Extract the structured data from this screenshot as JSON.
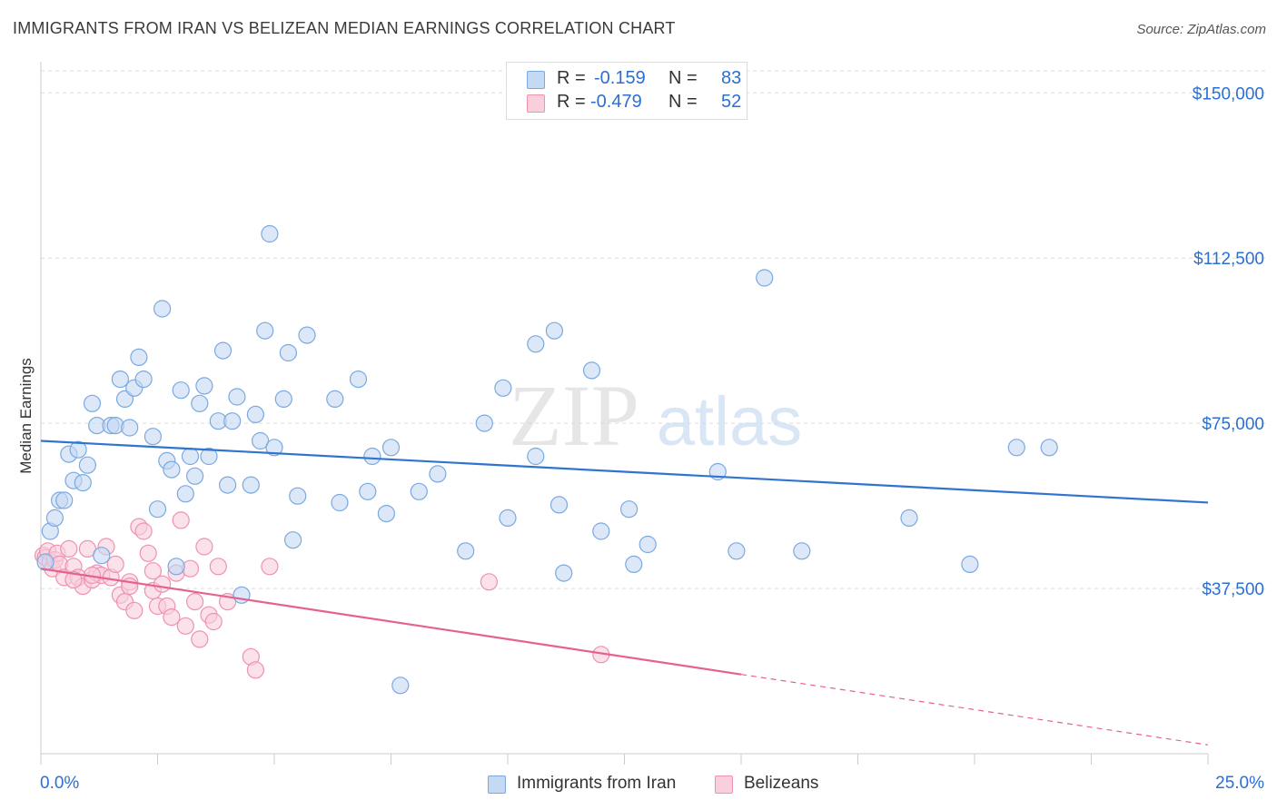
{
  "header": {
    "title": "IMMIGRANTS FROM IRAN VS BELIZEAN MEDIAN EARNINGS CORRELATION CHART",
    "source": "Source: ZipAtlas.com"
  },
  "watermark": {
    "zip": "ZIP",
    "atlas": "atlas"
  },
  "legend": {
    "rows": [
      {
        "r_label": "R =",
        "r_value": "-0.159",
        "n_label": "N =",
        "n_value": "83",
        "color": "#aac8f0"
      },
      {
        "r_label": "R =",
        "r_value": "-0.479",
        "n_label": "N =",
        "n_value": "52",
        "color": "#f6bccf"
      }
    ]
  },
  "bottom_legend": [
    {
      "label": "Immigrants from Iran",
      "color": "#aac8f0"
    },
    {
      "label": "Belizeans",
      "color": "#f6bccf"
    }
  ],
  "x_axis": {
    "min_label": "0.0%",
    "max_label": "25.0%"
  },
  "chart_data": {
    "type": "scatter",
    "title": "IMMIGRANTS FROM IRAN VS BELIZEAN MEDIAN EARNINGS CORRELATION CHART",
    "xlabel": "",
    "ylabel": "Median Earnings",
    "xlim": [
      0,
      25
    ],
    "ylim": [
      0,
      155000
    ],
    "y_ticks": [
      {
        "value": 150000,
        "label": "$150,000"
      },
      {
        "value": 112500,
        "label": "$112,500"
      },
      {
        "value": 75000,
        "label": "$75,000"
      },
      {
        "value": 37500,
        "label": "$37,500"
      }
    ],
    "x_ticks_pct": [
      0,
      2.5,
      5,
      7.5,
      10,
      12.5,
      15,
      17.5,
      20,
      22.5,
      25
    ],
    "grid": true,
    "legend_position": "top-center",
    "series": [
      {
        "name": "Immigrants from Iran",
        "color": "#7aa9e0",
        "fill": "#c4d9f4",
        "trend": {
          "x": [
            0,
            25
          ],
          "y": [
            71000,
            57000
          ],
          "color": "#2f74d0"
        },
        "points": [
          [
            0.2,
            50500
          ],
          [
            0.3,
            53500
          ],
          [
            0.4,
            57500
          ],
          [
            0.5,
            57500
          ],
          [
            0.6,
            68000
          ],
          [
            0.7,
            62000
          ],
          [
            0.8,
            69000
          ],
          [
            0.9,
            61500
          ],
          [
            1.0,
            65500
          ],
          [
            1.1,
            79500
          ],
          [
            1.2,
            74500
          ],
          [
            1.3,
            45000
          ],
          [
            1.5,
            74500
          ],
          [
            1.6,
            74500
          ],
          [
            1.7,
            85000
          ],
          [
            1.8,
            80500
          ],
          [
            1.9,
            74000
          ],
          [
            2.0,
            83000
          ],
          [
            2.1,
            90000
          ],
          [
            2.2,
            85000
          ],
          [
            2.4,
            72000
          ],
          [
            2.5,
            55500
          ],
          [
            2.6,
            101000
          ],
          [
            2.7,
            66500
          ],
          [
            2.8,
            64500
          ],
          [
            2.9,
            42500
          ],
          [
            3.0,
            82500
          ],
          [
            3.1,
            59000
          ],
          [
            3.2,
            67500
          ],
          [
            3.3,
            63000
          ],
          [
            3.4,
            79500
          ],
          [
            3.5,
            83500
          ],
          [
            3.6,
            67500
          ],
          [
            3.8,
            75500
          ],
          [
            3.9,
            91500
          ],
          [
            4.0,
            61000
          ],
          [
            4.1,
            75500
          ],
          [
            4.2,
            81000
          ],
          [
            4.3,
            36000
          ],
          [
            4.5,
            61000
          ],
          [
            4.6,
            77000
          ],
          [
            4.7,
            71000
          ],
          [
            4.8,
            96000
          ],
          [
            4.9,
            118000
          ],
          [
            5.0,
            69500
          ],
          [
            5.2,
            80500
          ],
          [
            5.3,
            91000
          ],
          [
            5.4,
            48500
          ],
          [
            5.5,
            58500
          ],
          [
            5.7,
            95000
          ],
          [
            6.3,
            80500
          ],
          [
            6.4,
            57000
          ],
          [
            6.8,
            85000
          ],
          [
            7.0,
            59500
          ],
          [
            7.1,
            67500
          ],
          [
            7.4,
            54500
          ],
          [
            7.5,
            69500
          ],
          [
            8.1,
            59500
          ],
          [
            8.5,
            63500
          ],
          [
            9.1,
            46000
          ],
          [
            9.5,
            75000
          ],
          [
            9.9,
            83000
          ],
          [
            10.0,
            53500
          ],
          [
            10.6,
            93000
          ],
          [
            10.6,
            67500
          ],
          [
            11.0,
            96000
          ],
          [
            11.1,
            56500
          ],
          [
            11.2,
            41000
          ],
          [
            11.8,
            87000
          ],
          [
            12.0,
            50500
          ],
          [
            12.6,
            55500
          ],
          [
            12.7,
            43000
          ],
          [
            13.0,
            47500
          ],
          [
            14.5,
            64000
          ],
          [
            14.9,
            46000
          ],
          [
            15.5,
            108000
          ],
          [
            16.3,
            46000
          ],
          [
            18.6,
            53500
          ],
          [
            19.9,
            43000
          ],
          [
            20.9,
            69500
          ],
          [
            21.6,
            69500
          ],
          [
            7.7,
            15500
          ],
          [
            0.1,
            43500
          ]
        ]
      },
      {
        "name": "Belizeans",
        "color": "#ee92ae",
        "fill": "#f9cfdc",
        "trend": {
          "x": [
            0,
            15
          ],
          "y": [
            42000,
            18000
          ],
          "color": "#e5628f",
          "dashed_to": [
            25,
            2000
          ]
        },
        "points": [
          [
            0.05,
            45000
          ],
          [
            0.1,
            44500
          ],
          [
            0.15,
            46000
          ],
          [
            0.2,
            43500
          ],
          [
            0.25,
            42000
          ],
          [
            0.3,
            44000
          ],
          [
            0.35,
            45500
          ],
          [
            0.4,
            43000
          ],
          [
            0.5,
            40000
          ],
          [
            0.6,
            46500
          ],
          [
            0.7,
            42500
          ],
          [
            0.8,
            40000
          ],
          [
            0.9,
            38000
          ],
          [
            1.0,
            46500
          ],
          [
            1.1,
            39500
          ],
          [
            1.2,
            41000
          ],
          [
            1.3,
            40500
          ],
          [
            1.4,
            47000
          ],
          [
            1.5,
            40000
          ],
          [
            1.6,
            43000
          ],
          [
            1.7,
            36000
          ],
          [
            1.8,
            34500
          ],
          [
            1.9,
            39000
          ],
          [
            2.0,
            32500
          ],
          [
            2.1,
            51500
          ],
          [
            2.2,
            50500
          ],
          [
            2.3,
            45500
          ],
          [
            2.4,
            37000
          ],
          [
            2.5,
            33500
          ],
          [
            2.6,
            38500
          ],
          [
            2.7,
            33500
          ],
          [
            2.8,
            31000
          ],
          [
            2.9,
            41000
          ],
          [
            3.0,
            53000
          ],
          [
            3.1,
            29000
          ],
          [
            3.2,
            42000
          ],
          [
            3.3,
            34500
          ],
          [
            3.4,
            26000
          ],
          [
            3.5,
            47000
          ],
          [
            3.6,
            31500
          ],
          [
            3.7,
            30000
          ],
          [
            3.8,
            42500
          ],
          [
            4.0,
            34500
          ],
          [
            4.5,
            22000
          ],
          [
            4.6,
            19000
          ],
          [
            4.9,
            42500
          ],
          [
            9.6,
            39000
          ],
          [
            12.0,
            22500
          ],
          [
            1.1,
            40500
          ],
          [
            0.7,
            39500
          ],
          [
            1.9,
            38000
          ],
          [
            2.4,
            41500
          ]
        ]
      }
    ]
  }
}
